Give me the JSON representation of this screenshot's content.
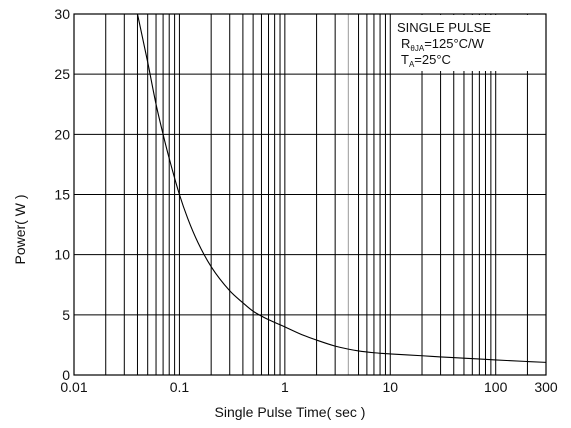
{
  "chart_data": {
    "type": "line",
    "title": "",
    "xlabel": "Single Pulse Time( sec )",
    "ylabel": "Power( W )",
    "xscale": "log",
    "xlim": [
      0.01,
      300
    ],
    "ylim": [
      0,
      30
    ],
    "grid": true,
    "x_ticks": [
      {
        "value": 0.01,
        "label": "0.01"
      },
      {
        "value": 0.1,
        "label": "0.1"
      },
      {
        "value": 1,
        "label": "1"
      },
      {
        "value": 10,
        "label": "10"
      },
      {
        "value": 100,
        "label": "100"
      },
      {
        "value": 300,
        "label": "300"
      }
    ],
    "y_ticks": [
      {
        "value": 0,
        "label": "0"
      },
      {
        "value": 5,
        "label": "5"
      },
      {
        "value": 10,
        "label": "10"
      },
      {
        "value": 15,
        "label": "15"
      },
      {
        "value": 20,
        "label": "20"
      },
      {
        "value": 25,
        "label": "25"
      },
      {
        "value": 30,
        "label": "30"
      }
    ],
    "annotation": {
      "line1": "SINGLE PULSE",
      "line2_prefix": "R",
      "line2_sub": "θJA",
      "line2_rest": "=125°C/W",
      "line3_prefix": "T",
      "line3_sub": "A",
      "line3_rest": "=25°C",
      "position": "top-right"
    },
    "series": [
      {
        "x": [
          0.04,
          0.05,
          0.06,
          0.07,
          0.08,
          0.1,
          0.12,
          0.15,
          0.2,
          0.3,
          0.4,
          0.5,
          0.7,
          1,
          1.5,
          2,
          3,
          4,
          5,
          7,
          10,
          20,
          30,
          50,
          100,
          200,
          300
        ],
        "y": [
          30,
          26,
          22.5,
          20,
          18,
          15,
          13,
          11,
          9,
          7,
          6,
          5.3,
          4.6,
          4,
          3.3,
          2.9,
          2.4,
          2.15,
          2.0,
          1.85,
          1.75,
          1.6,
          1.5,
          1.4,
          1.25,
          1.12,
          1.05
        ]
      }
    ]
  }
}
